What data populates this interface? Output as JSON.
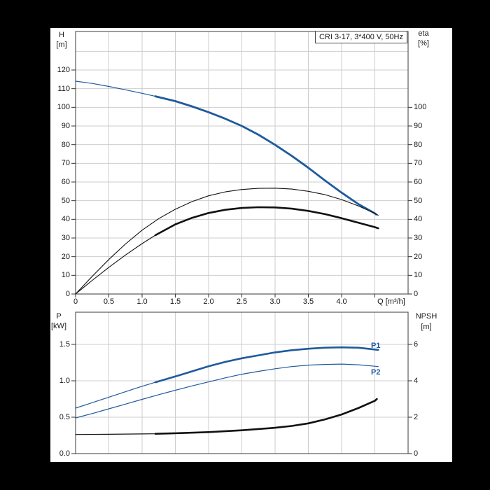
{
  "labels": {
    "title_box": "CRI 3-17, 3*400 V, 50Hz",
    "top_left_axis_1": "H",
    "top_left_axis_2": "[m]",
    "top_right_axis_1": "eta",
    "top_right_axis_2": "[%]",
    "x_axis_label": "Q [m³/h]",
    "bottom_left_axis_1": "P",
    "bottom_left_axis_2": "[kW]",
    "bottom_right_axis_1": "NPSH",
    "bottom_right_axis_2": "[m]",
    "p1_label": "P1",
    "p2_label": "P2"
  },
  "colors": {
    "curve_blue": "#1f5a9d",
    "curve_black": "#111111",
    "grid": "#cdcdcd",
    "border": "#5a5a5a",
    "tick": "#333333",
    "text": "#1a1a1a",
    "frame": "#000000",
    "panel": "#ffffff"
  },
  "chart_data": [
    {
      "type": "line",
      "title": "CRI 3-17, 3*400 V, 50Hz",
      "x": {
        "label": "Q [m³/h]",
        "min": 0,
        "max": 5,
        "grid_step": 0.5,
        "ticks": [
          {
            "v": 0,
            "t": "0"
          },
          {
            "v": 0.5,
            "t": "0.5"
          },
          {
            "v": 1,
            "t": "1.0"
          },
          {
            "v": 1.5,
            "t": "1.5"
          },
          {
            "v": 2,
            "t": "2.0"
          },
          {
            "v": 2.5,
            "t": "2.5"
          },
          {
            "v": 3,
            "t": "3.0"
          },
          {
            "v": 3.5,
            "t": "3.5"
          },
          {
            "v": 4,
            "t": "4.0"
          }
        ]
      },
      "left_axis": {
        "label": "H [m]",
        "min": 0,
        "max": 140,
        "ticks": [
          {
            "v": 0,
            "t": "0"
          },
          {
            "v": 10,
            "t": "10"
          },
          {
            "v": 20,
            "t": "20"
          },
          {
            "v": 30,
            "t": "30"
          },
          {
            "v": 40,
            "t": "40"
          },
          {
            "v": 50,
            "t": "50"
          },
          {
            "v": 60,
            "t": "60"
          },
          {
            "v": 70,
            "t": "70"
          },
          {
            "v": 80,
            "t": "80"
          },
          {
            "v": 90,
            "t": "90"
          },
          {
            "v": 100,
            "t": "100"
          },
          {
            "v": 110,
            "t": "110"
          },
          {
            "v": 120,
            "t": "120"
          }
        ],
        "grid_values": [
          10,
          20,
          30,
          40,
          50,
          60,
          70,
          80,
          90,
          100,
          110,
          120,
          130
        ]
      },
      "right_axis": {
        "label": "eta [%]",
        "min": 0,
        "max": 100,
        "ticks": [
          {
            "v": 0,
            "t": "0"
          },
          {
            "v": 10,
            "t": "10"
          },
          {
            "v": 20,
            "t": "20"
          },
          {
            "v": 30,
            "t": "30"
          },
          {
            "v": 40,
            "t": "40"
          },
          {
            "v": 50,
            "t": "50"
          },
          {
            "v": 60,
            "t": "60"
          },
          {
            "v": 70,
            "t": "70"
          },
          {
            "v": 80,
            "t": "80"
          },
          {
            "v": 90,
            "t": "90"
          },
          {
            "v": 100,
            "t": "100"
          }
        ]
      },
      "series": [
        {
          "name": "QH-curve",
          "axis": "left",
          "color": "#1f5a9d",
          "thin_width": 1.2,
          "thick_width": 2.8,
          "thick_from": 1.2,
          "points": [
            [
              0,
              114
            ],
            [
              0.25,
              112.8
            ],
            [
              0.5,
              111.2
            ],
            [
              0.75,
              109.4
            ],
            [
              1,
              107.5
            ],
            [
              1.2,
              105.9
            ],
            [
              1.5,
              103.3
            ],
            [
              1.75,
              100.5
            ],
            [
              2,
              97.4
            ],
            [
              2.25,
              93.9
            ],
            [
              2.5,
              90
            ],
            [
              2.75,
              85.3
            ],
            [
              3,
              79.9
            ],
            [
              3.25,
              74
            ],
            [
              3.5,
              67.6
            ],
            [
              3.75,
              60.8
            ],
            [
              4,
              54.3
            ],
            [
              4.25,
              48.2
            ],
            [
              4.5,
              43.2
            ],
            [
              4.52,
              42.6
            ]
          ]
        },
        {
          "name": "eta-pump-curve",
          "axis": "right",
          "color": "#111111",
          "thin_width": 1.1,
          "thick_width": 1.1,
          "points": [
            [
              0,
              0
            ],
            [
              0.25,
              9.5
            ],
            [
              0.5,
              18.5
            ],
            [
              0.75,
              26.8
            ],
            [
              1,
              34.2
            ],
            [
              1.25,
              40.4
            ],
            [
              1.5,
              45.4
            ],
            [
              1.75,
              49.5
            ],
            [
              2,
              52.6
            ],
            [
              2.25,
              54.7
            ],
            [
              2.5,
              56
            ],
            [
              2.75,
              56.6
            ],
            [
              3,
              56.7
            ],
            [
              3.25,
              56.2
            ],
            [
              3.5,
              55
            ],
            [
              3.75,
              53.2
            ],
            [
              4,
              50.6
            ],
            [
              4.25,
              47.2
            ],
            [
              4.5,
              43.2
            ],
            [
              4.55,
              42.2
            ]
          ]
        },
        {
          "name": "eta-pump-motor-curve",
          "axis": "right",
          "color": "#111111",
          "thin_width": 1.1,
          "thick_width": 2.6,
          "thick_from": 1.2,
          "points": [
            [
              0,
              0
            ],
            [
              0.25,
              7.3
            ],
            [
              0.5,
              14.3
            ],
            [
              0.75,
              20.9
            ],
            [
              1,
              27
            ],
            [
              1.2,
              31.5
            ],
            [
              1.5,
              37.3
            ],
            [
              1.75,
              40.8
            ],
            [
              2,
              43.4
            ],
            [
              2.25,
              45.1
            ],
            [
              2.5,
              46.1
            ],
            [
              2.75,
              46.5
            ],
            [
              3,
              46.4
            ],
            [
              3.25,
              45.7
            ],
            [
              3.5,
              44.5
            ],
            [
              3.75,
              42.8
            ],
            [
              4,
              40.6
            ],
            [
              4.25,
              38.2
            ],
            [
              4.5,
              35.8
            ],
            [
              4.55,
              35.2
            ]
          ]
        }
      ]
    },
    {
      "type": "line",
      "x": {
        "label": "",
        "min": 0,
        "max": 5,
        "grid_step": 0.5,
        "ticks": []
      },
      "left_axis": {
        "label": "P [kW]",
        "min": 0,
        "max": 1.94,
        "ticks": [
          {
            "v": 0,
            "t": "0.0"
          },
          {
            "v": 0.5,
            "t": "0.5"
          },
          {
            "v": 1,
            "t": "1.0"
          },
          {
            "v": 1.5,
            "t": "1.5"
          }
        ],
        "grid_values": [
          0.5,
          1.0,
          1.5
        ]
      },
      "right_axis": {
        "label": "NPSH [m]",
        "min": 0,
        "max": 7.7,
        "ticks": [
          {
            "v": 0,
            "t": "0"
          },
          {
            "v": 2,
            "t": "2"
          },
          {
            "v": 4,
            "t": "4"
          },
          {
            "v": 6,
            "t": "6"
          }
        ]
      },
      "series": [
        {
          "name": "P1-curve",
          "label": "P1",
          "axis": "left",
          "color": "#1f5a9d",
          "thin_width": 1.2,
          "thick_width": 2.6,
          "thick_from": 1.2,
          "points": [
            [
              0,
              0.625
            ],
            [
              0.25,
              0.7
            ],
            [
              0.5,
              0.775
            ],
            [
              0.75,
              0.85
            ],
            [
              1,
              0.925
            ],
            [
              1.2,
              0.98
            ],
            [
              1.5,
              1.06
            ],
            [
              1.75,
              1.13
            ],
            [
              2,
              1.2
            ],
            [
              2.25,
              1.26
            ],
            [
              2.5,
              1.31
            ],
            [
              2.75,
              1.35
            ],
            [
              3,
              1.39
            ],
            [
              3.25,
              1.42
            ],
            [
              3.5,
              1.44
            ],
            [
              3.75,
              1.455
            ],
            [
              4,
              1.46
            ],
            [
              4.25,
              1.455
            ],
            [
              4.5,
              1.43
            ],
            [
              4.55,
              1.425
            ]
          ]
        },
        {
          "name": "P2-curve",
          "label": "P2",
          "axis": "left",
          "color": "#1f5a9d",
          "thin_width": 1.2,
          "thick_width": 1.2,
          "points": [
            [
              0,
              0.49
            ],
            [
              0.25,
              0.55
            ],
            [
              0.5,
              0.615
            ],
            [
              0.75,
              0.68
            ],
            [
              1,
              0.745
            ],
            [
              1.25,
              0.81
            ],
            [
              1.5,
              0.87
            ],
            [
              1.75,
              0.93
            ],
            [
              2,
              0.985
            ],
            [
              2.25,
              1.04
            ],
            [
              2.5,
              1.09
            ],
            [
              2.75,
              1.13
            ],
            [
              3,
              1.165
            ],
            [
              3.25,
              1.195
            ],
            [
              3.5,
              1.215
            ],
            [
              3.75,
              1.225
            ],
            [
              4,
              1.23
            ],
            [
              4.25,
              1.22
            ],
            [
              4.5,
              1.2
            ],
            [
              4.55,
              1.195
            ]
          ]
        },
        {
          "name": "NPSH-curve",
          "axis": "right",
          "color": "#111111",
          "thin_width": 1.2,
          "thick_width": 2.6,
          "thick_from": 1.2,
          "points": [
            [
              0,
              1.05
            ],
            [
              0.5,
              1.06
            ],
            [
              1,
              1.08
            ],
            [
              1.2,
              1.09
            ],
            [
              1.5,
              1.12
            ],
            [
              2,
              1.18
            ],
            [
              2.5,
              1.28
            ],
            [
              3,
              1.42
            ],
            [
              3.25,
              1.52
            ],
            [
              3.5,
              1.66
            ],
            [
              3.75,
              1.88
            ],
            [
              4,
              2.15
            ],
            [
              4.25,
              2.5
            ],
            [
              4.5,
              2.9
            ],
            [
              4.53,
              3
            ]
          ]
        }
      ]
    }
  ]
}
